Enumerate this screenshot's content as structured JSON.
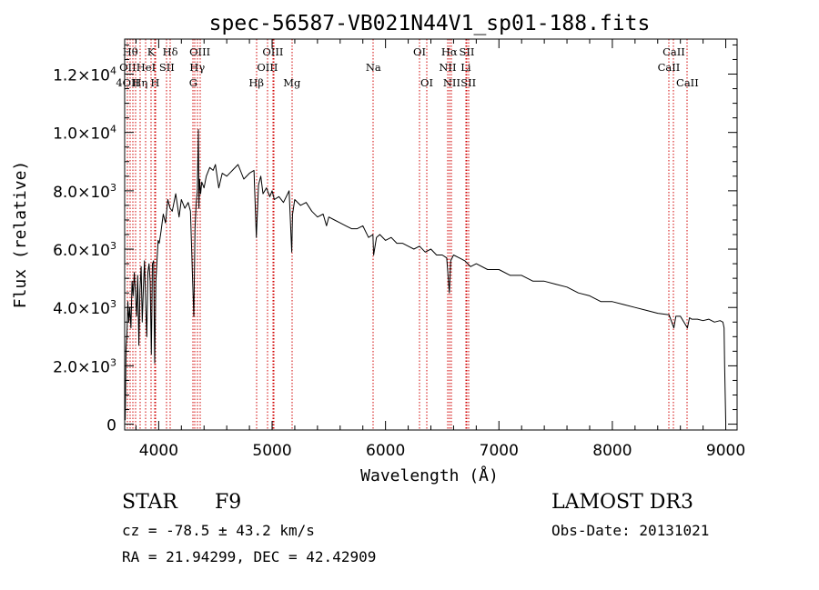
{
  "chart_data": {
    "type": "line",
    "title": "spec-56587-VB021N44V1_sp01-188.fits",
    "xlabel": "Wavelength (Å)",
    "ylabel": "Flux (relative)",
    "xlim": [
      3700,
      9100
    ],
    "ylim": [
      -200,
      13200
    ],
    "xticks": [
      4000,
      5000,
      6000,
      7000,
      8000,
      9000
    ],
    "xtick_labels": [
      "4000",
      "5000",
      "6000",
      "7000",
      "8000",
      "9000"
    ],
    "yticks": [
      0,
      2000,
      4000,
      6000,
      8000,
      10000,
      12000
    ],
    "ytick_labels": [
      {
        "mant": "0",
        "exp": ""
      },
      {
        "mant": "2.0×10",
        "exp": "3"
      },
      {
        "mant": "4.0×10",
        "exp": "3"
      },
      {
        "mant": "6.0×10",
        "exp": "3"
      },
      {
        "mant": "8.0×10",
        "exp": "3"
      },
      {
        "mant": "1.0×10",
        "exp": "4"
      },
      {
        "mant": "1.2×10",
        "exp": "4"
      }
    ],
    "grid": false,
    "series": [
      {
        "name": "spectrum",
        "x": [
          3700,
          3705,
          3712,
          3720,
          3728,
          3736,
          3745,
          3755,
          3765,
          3775,
          3785,
          3795,
          3805,
          3815,
          3825,
          3835,
          3845,
          3855,
          3865,
          3875,
          3885,
          3895,
          3905,
          3915,
          3925,
          3935,
          3945,
          3955,
          3965,
          3975,
          3985,
          3995,
          4005,
          4020,
          4040,
          4060,
          4080,
          4100,
          4120,
          4150,
          4180,
          4200,
          4230,
          4260,
          4280,
          4300,
          4310,
          4320,
          4330,
          4340,
          4350,
          4355,
          4360,
          4370,
          4380,
          4400,
          4420,
          4450,
          4480,
          4500,
          4530,
          4560,
          4600,
          4650,
          4700,
          4750,
          4800,
          4840,
          4861,
          4880,
          4900,
          4920,
          4950,
          4980,
          5000,
          5020,
          5060,
          5100,
          5150,
          5173,
          5180,
          5200,
          5250,
          5300,
          5350,
          5400,
          5450,
          5480,
          5500,
          5550,
          5600,
          5650,
          5700,
          5750,
          5800,
          5850,
          5889,
          5895,
          5920,
          5950,
          6000,
          6050,
          6100,
          6150,
          6200,
          6250,
          6300,
          6350,
          6400,
          6450,
          6500,
          6540,
          6563,
          6575,
          6600,
          6650,
          6700,
          6750,
          6800,
          6900,
          7000,
          7100,
          7200,
          7300,
          7400,
          7500,
          7600,
          7700,
          7800,
          7900,
          8000,
          8100,
          8200,
          8300,
          8400,
          8500,
          8542,
          8560,
          8600,
          8662,
          8680,
          8700,
          8750,
          8800,
          8850,
          8900,
          8950,
          8975,
          8985,
          8990,
          9000
        ],
        "y": [
          1200,
          150,
          2600,
          3100,
          4200,
          3500,
          4000,
          3300,
          4900,
          4400,
          5200,
          4500,
          3700,
          5100,
          2700,
          4600,
          5400,
          3500,
          4700,
          5600,
          4100,
          3000,
          5200,
          5500,
          4900,
          2400,
          5500,
          5600,
          2100,
          4900,
          5600,
          6300,
          6200,
          6600,
          7200,
          6900,
          7700,
          7400,
          7300,
          7900,
          7100,
          7700,
          7400,
          7600,
          7300,
          4800,
          3700,
          6700,
          7500,
          8000,
          10100,
          7400,
          8400,
          7900,
          8300,
          8100,
          8500,
          8800,
          8700,
          8900,
          8100,
          8600,
          8500,
          8700,
          8900,
          8400,
          8600,
          8700,
          6400,
          8200,
          8500,
          7900,
          8100,
          7800,
          8000,
          7700,
          7800,
          7600,
          8000,
          5900,
          7200,
          7700,
          7500,
          7600,
          7300,
          7100,
          7200,
          6800,
          7100,
          7000,
          6900,
          6800,
          6700,
          6700,
          6800,
          6400,
          6500,
          5800,
          6400,
          6500,
          6300,
          6400,
          6200,
          6200,
          6100,
          6000,
          6100,
          5900,
          6000,
          5800,
          5800,
          5700,
          4500,
          5600,
          5800,
          5700,
          5600,
          5400,
          5500,
          5300,
          5300,
          5100,
          5100,
          4900,
          4900,
          4800,
          4700,
          4500,
          4400,
          4200,
          4200,
          4100,
          4000,
          3900,
          3800,
          3750,
          3300,
          3700,
          3700,
          3300,
          3650,
          3600,
          3600,
          3550,
          3600,
          3500,
          3550,
          3500,
          3300,
          2000,
          100
        ]
      }
    ],
    "lines_top": [
      {
        "x": 3750,
        "label": "Hθ"
      },
      {
        "x": 3933,
        "label": "K"
      },
      {
        "x": 4102,
        "label": "Hδ"
      },
      {
        "x": 4363,
        "label": "OIII"
      },
      {
        "x": 5007,
        "label": "OIII"
      },
      {
        "x": 6300,
        "label": "OI"
      },
      {
        "x": 6563,
        "label": "Hα"
      },
      {
        "x": 6717,
        "label": "SII"
      },
      {
        "x": 8542,
        "label": "CaII"
      }
    ],
    "lines_mid": [
      {
        "x": 3727,
        "label": "OII"
      },
      {
        "x": 3888,
        "label": "HeI"
      },
      {
        "x": 4072,
        "label": "SII"
      },
      {
        "x": 4340,
        "label": "Hγ"
      },
      {
        "x": 4959,
        "label": "OIII"
      },
      {
        "x": 5893,
        "label": "Na"
      },
      {
        "x": 6548,
        "label": "NII"
      },
      {
        "x": 6708,
        "label": "Li"
      },
      {
        "x": 8498,
        "label": "CaII"
      }
    ],
    "lines_low": [
      {
        "x": 3726,
        "label": "4OII"
      },
      {
        "x": 3835,
        "label": "Hη"
      },
      {
        "x": 3968,
        "label": "H"
      },
      {
        "x": 4305,
        "label": "G"
      },
      {
        "x": 4861,
        "label": "Hβ"
      },
      {
        "x": 5175,
        "label": "Mg"
      },
      {
        "x": 6364,
        "label": "OI"
      },
      {
        "x": 6584,
        "label": "NII"
      },
      {
        "x": 6731,
        "label": "SII"
      },
      {
        "x": 8662,
        "label": "CaII"
      }
    ],
    "extra_line_markers": [
      3770,
      3798,
      3970,
      4320,
      5015
    ]
  },
  "info": {
    "class": "STAR",
    "subclass": "F9",
    "cz": "cz = -78.5 ± 43.2 km/s",
    "coords": "RA =  21.94299, DEC =  42.42909",
    "survey": "LAMOST DR3",
    "obs_date": "Obs-Date: 20131021"
  },
  "colors": {
    "line_marker": "#d00000",
    "spectrum": "#000000",
    "axes": "#000000"
  }
}
